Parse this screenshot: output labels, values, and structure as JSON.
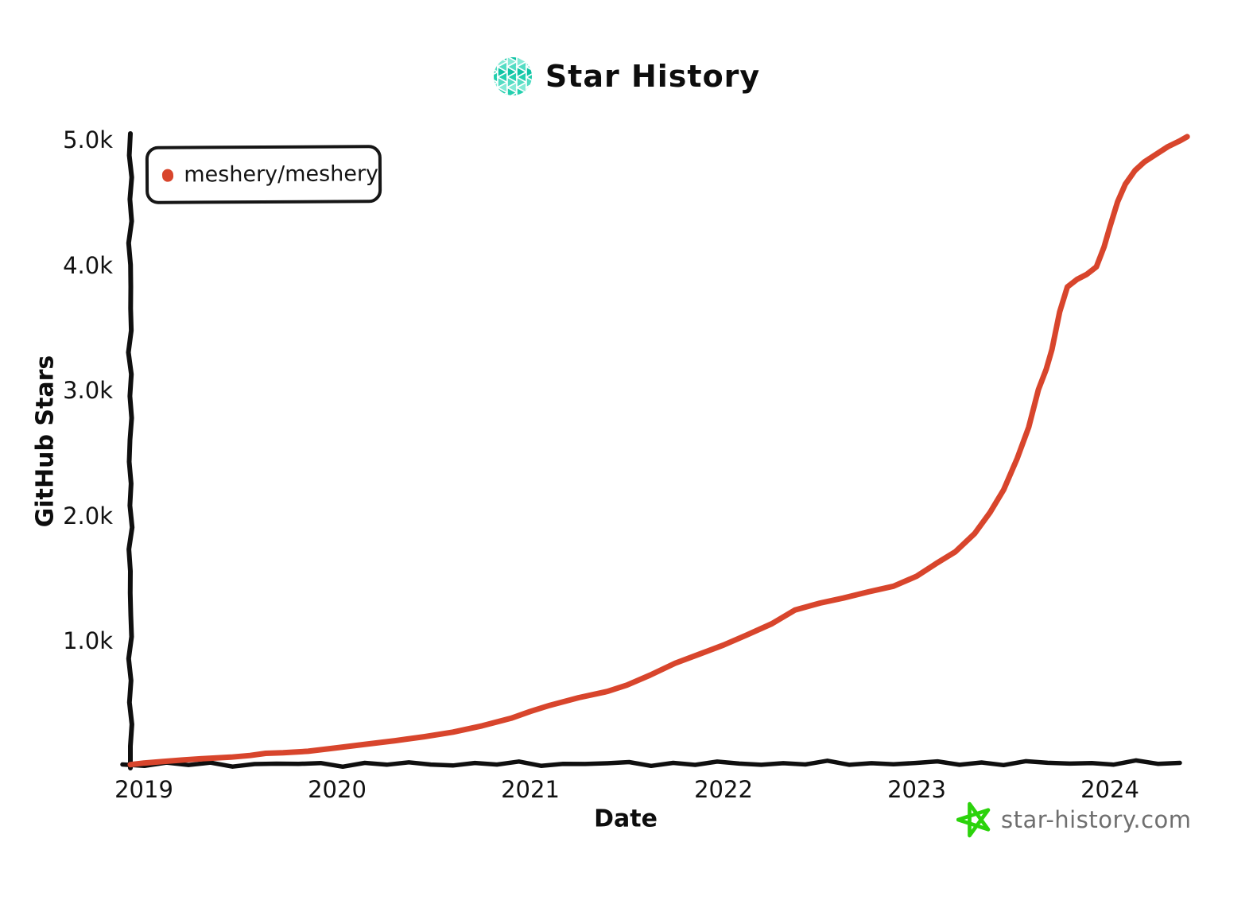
{
  "title": "Star History",
  "legend": {
    "series_label": "meshery/meshery"
  },
  "footer": {
    "site": "star-history.com"
  },
  "colors": {
    "series": "#d8452c",
    "axis": "#0f0f0f",
    "tick_text": "#111111",
    "logo_palette": [
      "#0fc3a4",
      "#53dcc3",
      "#23cfae",
      "#84ead6"
    ],
    "footer_star_green": "#2bd30b",
    "footer_text": "#6f6f6f"
  },
  "chart_data": {
    "type": "line",
    "title": "Star History",
    "xlabel": "Date",
    "ylabel": "GitHub Stars",
    "grid": false,
    "legend_position": "top-left",
    "x_ticks": [
      "2019",
      "2020",
      "2021",
      "2022",
      "2023",
      "2024"
    ],
    "y_ticks": [
      {
        "label": "1.0k",
        "value": 1000
      },
      {
        "label": "2.0k",
        "value": 2000
      },
      {
        "label": "3.0k",
        "value": 3000
      },
      {
        "label": "4.0k",
        "value": 4000
      },
      {
        "label": "5.0k",
        "value": 5000
      }
    ],
    "xlim": [
      2018.92,
      2024.45
    ],
    "ylim": [
      0,
      5060
    ],
    "x_unit": "year",
    "y_unit": "stars",
    "series": [
      {
        "name": "meshery/meshery",
        "color": "#d8452c",
        "points": [
          [
            2018.93,
            5
          ],
          [
            2019.0,
            18
          ],
          [
            2019.1,
            30
          ],
          [
            2019.2,
            42
          ],
          [
            2019.3,
            52
          ],
          [
            2019.45,
            65
          ],
          [
            2019.55,
            78
          ],
          [
            2019.63,
            95
          ],
          [
            2019.72,
            100
          ],
          [
            2019.85,
            112
          ],
          [
            2020.0,
            140
          ],
          [
            2020.15,
            168
          ],
          [
            2020.3,
            196
          ],
          [
            2020.45,
            228
          ],
          [
            2020.6,
            265
          ],
          [
            2020.75,
            315
          ],
          [
            2020.9,
            375
          ],
          [
            2021.0,
            430
          ],
          [
            2021.1,
            478
          ],
          [
            2021.25,
            540
          ],
          [
            2021.4,
            590
          ],
          [
            2021.5,
            640
          ],
          [
            2021.62,
            720
          ],
          [
            2021.75,
            815
          ],
          [
            2021.88,
            890
          ],
          [
            2022.0,
            960
          ],
          [
            2022.12,
            1040
          ],
          [
            2022.25,
            1130
          ],
          [
            2022.37,
            1240
          ],
          [
            2022.5,
            1295
          ],
          [
            2022.62,
            1335
          ],
          [
            2022.75,
            1385
          ],
          [
            2022.88,
            1430
          ],
          [
            2023.0,
            1510
          ],
          [
            2023.1,
            1610
          ],
          [
            2023.2,
            1705
          ],
          [
            2023.3,
            1850
          ],
          [
            2023.38,
            2020
          ],
          [
            2023.45,
            2200
          ],
          [
            2023.52,
            2450
          ],
          [
            2023.58,
            2700
          ],
          [
            2023.63,
            3000
          ],
          [
            2023.67,
            3160
          ],
          [
            2023.7,
            3320
          ],
          [
            2023.74,
            3620
          ],
          [
            2023.78,
            3820
          ],
          [
            2023.83,
            3880
          ],
          [
            2023.88,
            3920
          ],
          [
            2023.93,
            3980
          ],
          [
            2023.97,
            4140
          ],
          [
            2024.0,
            4300
          ],
          [
            2024.04,
            4500
          ],
          [
            2024.08,
            4640
          ],
          [
            2024.13,
            4750
          ],
          [
            2024.18,
            4820
          ],
          [
            2024.24,
            4880
          ],
          [
            2024.3,
            4940
          ],
          [
            2024.36,
            4985
          ],
          [
            2024.4,
            5020
          ]
        ]
      }
    ]
  }
}
